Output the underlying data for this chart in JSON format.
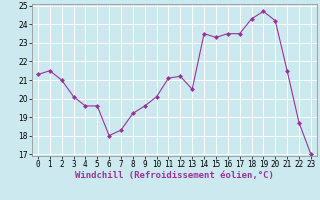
{
  "x": [
    0,
    1,
    2,
    3,
    4,
    5,
    6,
    7,
    8,
    9,
    10,
    11,
    12,
    13,
    14,
    15,
    16,
    17,
    18,
    19,
    20,
    21,
    22,
    23
  ],
  "y": [
    21.3,
    21.5,
    21.0,
    20.1,
    19.6,
    19.6,
    18.0,
    18.3,
    19.2,
    19.6,
    20.1,
    21.1,
    21.2,
    20.5,
    23.5,
    23.3,
    23.5,
    23.5,
    24.3,
    24.7,
    24.2,
    21.5,
    18.7,
    17.0
  ],
  "line_color": "#993399",
  "marker": "D",
  "marker_size": 2,
  "bg_color": "#cce9f0",
  "grid_color": "#ffffff",
  "xlabel": "Windchill (Refroidissement éolien,°C)",
  "xlabel_color": "#993399",
  "ylim_min": 17,
  "ylim_max": 25,
  "xlim_min": -0.5,
  "xlim_max": 23.5,
  "yticks": [
    17,
    18,
    19,
    20,
    21,
    22,
    23,
    24,
    25
  ],
  "xticks": [
    0,
    1,
    2,
    3,
    4,
    5,
    6,
    7,
    8,
    9,
    10,
    11,
    12,
    13,
    14,
    15,
    16,
    17,
    18,
    19,
    20,
    21,
    22,
    23
  ],
  "tick_label_size": 5.5,
  "xlabel_size": 6.5,
  "linewidth": 0.8
}
